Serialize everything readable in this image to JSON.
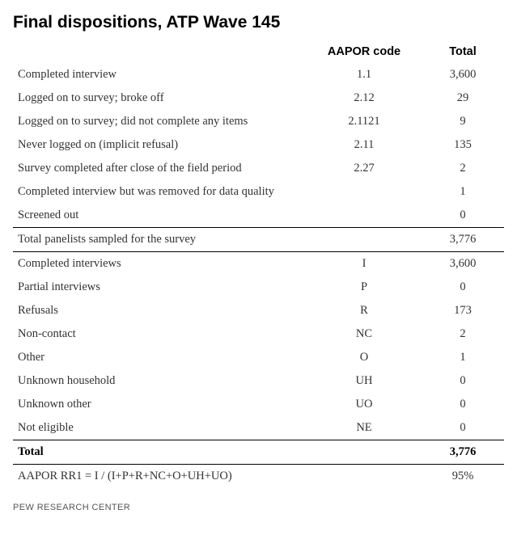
{
  "title": "Final dispositions, ATP Wave 145",
  "columns": {
    "label": "",
    "code": "AAPOR code",
    "total": "Total"
  },
  "rows": [
    {
      "label": "Completed interview",
      "code": "1.1",
      "total": "3,600",
      "rule": false,
      "bold": false
    },
    {
      "label": "Logged on to survey; broke off",
      "code": "2.12",
      "total": "29",
      "rule": false,
      "bold": false
    },
    {
      "label": "Logged on to survey; did not complete any items",
      "code": "2.1121",
      "total": "9",
      "rule": false,
      "bold": false
    },
    {
      "label": "Never logged on (implicit refusal)",
      "code": "2.11",
      "total": "135",
      "rule": false,
      "bold": false
    },
    {
      "label": "Survey completed after close of the field period",
      "code": "2.27",
      "total": "2",
      "rule": false,
      "bold": false
    },
    {
      "label": "Completed interview but was removed for data quality",
      "code": "",
      "total": "1",
      "rule": false,
      "bold": false
    },
    {
      "label": "Screened out",
      "code": "",
      "total": "0",
      "rule": false,
      "bold": false
    },
    {
      "label": "Total panelists sampled for the survey",
      "code": "",
      "total": "3,776",
      "rule": true,
      "bold": false
    },
    {
      "label": "Completed interviews",
      "code": "I",
      "total": "3,600",
      "rule": true,
      "bold": false
    },
    {
      "label": "Partial interviews",
      "code": "P",
      "total": "0",
      "rule": false,
      "bold": false
    },
    {
      "label": "Refusals",
      "code": "R",
      "total": "173",
      "rule": false,
      "bold": false
    },
    {
      "label": "Non-contact",
      "code": "NC",
      "total": "2",
      "rule": false,
      "bold": false
    },
    {
      "label": "Other",
      "code": "O",
      "total": "1",
      "rule": false,
      "bold": false
    },
    {
      "label": "Unknown household",
      "code": "UH",
      "total": "0",
      "rule": false,
      "bold": false
    },
    {
      "label": "Unknown other",
      "code": "UO",
      "total": "0",
      "rule": false,
      "bold": false
    },
    {
      "label": "Not eligible",
      "code": "NE",
      "total": "0",
      "rule": false,
      "bold": false
    },
    {
      "label": "Total",
      "code": "",
      "total": "3,776",
      "rule": true,
      "bold": true
    },
    {
      "label": "AAPOR RR1 = I / (I+P+R+NC+O+UH+UO)",
      "code": "",
      "total": "95%",
      "rule": true,
      "bold": false
    }
  ],
  "footer": "PEW RESEARCH CENTER",
  "style": {
    "title_fontsize": 21,
    "body_fontsize": 14.5,
    "footer_fontsize": 11,
    "text_color": "#333333",
    "heading_color": "#000000",
    "rule_color": "#000000",
    "background": "#ffffff"
  }
}
